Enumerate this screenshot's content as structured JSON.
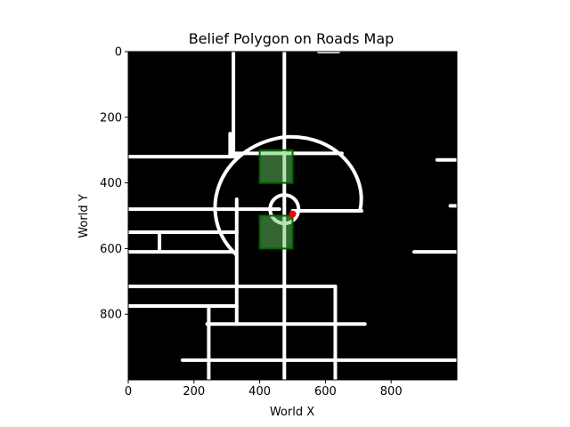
{
  "chart_data": {
    "type": "map",
    "title": "Belief Polygon on Roads Map",
    "xlabel": "World X",
    "ylabel": "World Y",
    "xlim": [
      0,
      1000
    ],
    "ylim": [
      1000,
      0
    ],
    "x_ticks": [
      0,
      200,
      400,
      600,
      800
    ],
    "y_ticks": [
      0,
      200,
      400,
      600,
      800
    ],
    "grid": false,
    "background_color": "#000000",
    "road_color": "#ffffff",
    "roads": [
      {
        "x1": 0,
        "y1": 320,
        "x2": 330,
        "y2": 320
      },
      {
        "x1": 0,
        "y1": 480,
        "x2": 460,
        "y2": 480
      },
      {
        "x1": 500,
        "y1": 485,
        "x2": 710,
        "y2": 485
      },
      {
        "x1": 0,
        "y1": 550,
        "x2": 330,
        "y2": 550
      },
      {
        "x1": 0,
        "y1": 610,
        "x2": 320,
        "y2": 610
      },
      {
        "x1": 0,
        "y1": 715,
        "x2": 630,
        "y2": 715
      },
      {
        "x1": 0,
        "y1": 775,
        "x2": 330,
        "y2": 775
      },
      {
        "x1": 240,
        "y1": 830,
        "x2": 720,
        "y2": 830
      },
      {
        "x1": 165,
        "y1": 940,
        "x2": 1000,
        "y2": 940
      },
      {
        "x1": 650,
        "y1": 310,
        "x2": 310,
        "y2": 310
      },
      {
        "x1": 320,
        "y1": 0,
        "x2": 320,
        "y2": 310
      },
      {
        "x1": 475,
        "y1": 0,
        "x2": 475,
        "y2": 1000
      },
      {
        "x1": 330,
        "y1": 450,
        "x2": 330,
        "y2": 830
      },
      {
        "x1": 630,
        "y1": 715,
        "x2": 630,
        "y2": 1000
      },
      {
        "x1": 245,
        "y1": 775,
        "x2": 245,
        "y2": 1000
      },
      {
        "x1": 95,
        "y1": 550,
        "x2": 95,
        "y2": 610
      },
      {
        "x1": 310,
        "y1": 250,
        "x2": 310,
        "y2": 320
      },
      {
        "x1": 580,
        "y1": 0,
        "x2": 640,
        "y2": 0
      },
      {
        "x1": 870,
        "y1": 610,
        "x2": 1000,
        "y2": 610
      },
      {
        "x1": 940,
        "y1": 330,
        "x2": 1000,
        "y2": 330
      },
      {
        "x1": 980,
        "y1": 470,
        "x2": 1000,
        "y2": 470
      }
    ],
    "polygons": [
      {
        "x": [
          400,
          500,
          500,
          400
        ],
        "y": [
          300,
          300,
          400,
          400
        ],
        "fill": "#66cc66",
        "stroke": "#006400"
      },
      {
        "x": [
          400,
          500,
          500,
          400
        ],
        "y": [
          500,
          500,
          600,
          600
        ],
        "fill": "#66cc66",
        "stroke": "#006400"
      }
    ],
    "points": [
      {
        "x": 500,
        "y": 495,
        "color": "#ff0000"
      }
    ]
  }
}
